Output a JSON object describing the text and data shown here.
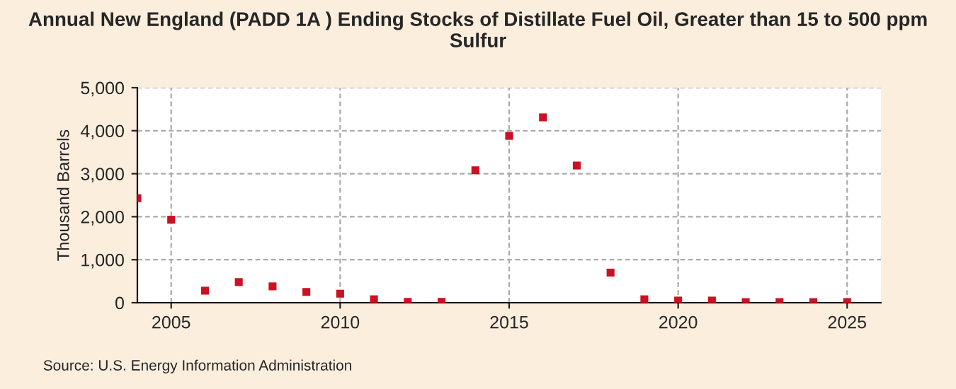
{
  "chart_data": {
    "type": "scatter",
    "title": "Annual New England (PADD 1A ) Ending Stocks of Distillate Fuel Oil, Greater than 15 to 500 ppm Sulfur",
    "ylabel": "Thousand Barrels",
    "x": [
      2004,
      2005,
      2006,
      2007,
      2008,
      2009,
      2010,
      2011,
      2012,
      2013,
      2014,
      2015,
      2016,
      2017,
      2018,
      2019,
      2020,
      2021,
      2022,
      2023,
      2024,
      2025
    ],
    "series": [
      {
        "color": "#cc1122",
        "values": [
          2430,
          1930,
          280,
          480,
          380,
          250,
          210,
          80,
          20,
          20,
          3080,
          3880,
          4310,
          3190,
          700,
          80,
          50,
          50,
          15,
          15,
          15,
          15
        ]
      }
    ],
    "xlim": [
      2004,
      2026
    ],
    "xticks": [
      2005,
      2010,
      2015,
      2020,
      2025
    ],
    "ylim": [
      0,
      5000
    ],
    "yticks": [
      {
        "value": 0,
        "label": "0"
      },
      {
        "value": 1000,
        "label": "1,000"
      },
      {
        "value": 2000,
        "label": "2,000"
      },
      {
        "value": 3000,
        "label": "3,000"
      },
      {
        "value": 4000,
        "label": "4,000"
      },
      {
        "value": 5000,
        "label": "5,000"
      }
    ],
    "grid": true,
    "marker": "square",
    "annotations": [
      "Source: U.S. Energy Information Administration"
    ]
  }
}
